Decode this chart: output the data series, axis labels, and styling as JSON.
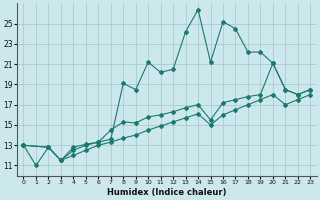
{
  "xlabel": "Humidex (Indice chaleur)",
  "bg_color": "#cce8ec",
  "grid_color": "#aacccc",
  "line_color": "#1a7a6e",
  "xlim": [
    -0.5,
    23.5
  ],
  "ylim": [
    10.0,
    27.0
  ],
  "yticks": [
    11,
    13,
    15,
    17,
    19,
    21,
    23,
    25
  ],
  "xticks": [
    0,
    1,
    2,
    3,
    4,
    5,
    6,
    7,
    8,
    9,
    10,
    11,
    12,
    13,
    14,
    15,
    16,
    17,
    18,
    19,
    20,
    21,
    22,
    23
  ],
  "line1_x": [
    0,
    1,
    2,
    3,
    4,
    5,
    6,
    7,
    8,
    9,
    10,
    11,
    12,
    13,
    14,
    15,
    16,
    17,
    18,
    19,
    20,
    21,
    22,
    23
  ],
  "line1_y": [
    13.0,
    11.0,
    12.8,
    11.5,
    12.8,
    13.1,
    13.3,
    13.6,
    19.1,
    18.5,
    21.2,
    20.2,
    20.5,
    24.2,
    26.4,
    21.2,
    25.2,
    24.5,
    22.2,
    22.2,
    21.1,
    18.5,
    18.0,
    18.5
  ],
  "line2_x": [
    0,
    2,
    3,
    4,
    5,
    6,
    7,
    8,
    9,
    10,
    11,
    12,
    13,
    14,
    15,
    16,
    17,
    18,
    19,
    20,
    21,
    22,
    23
  ],
  "line2_y": [
    13.0,
    12.8,
    11.5,
    12.5,
    13.0,
    13.3,
    14.5,
    15.3,
    15.2,
    15.8,
    16.0,
    16.3,
    16.7,
    17.0,
    15.5,
    17.2,
    17.5,
    17.8,
    18.0,
    21.1,
    18.5,
    18.0,
    18.5
  ],
  "line3_x": [
    0,
    2,
    3,
    4,
    5,
    6,
    7,
    8,
    9,
    10,
    11,
    12,
    13,
    14,
    15,
    16,
    17,
    18,
    19,
    20,
    21,
    22,
    23
  ],
  "line3_y": [
    13.0,
    12.8,
    11.5,
    12.0,
    12.5,
    13.0,
    13.3,
    13.7,
    14.0,
    14.5,
    14.9,
    15.3,
    15.7,
    16.1,
    15.0,
    16.0,
    16.5,
    17.0,
    17.5,
    18.0,
    17.0,
    17.5,
    18.0
  ]
}
